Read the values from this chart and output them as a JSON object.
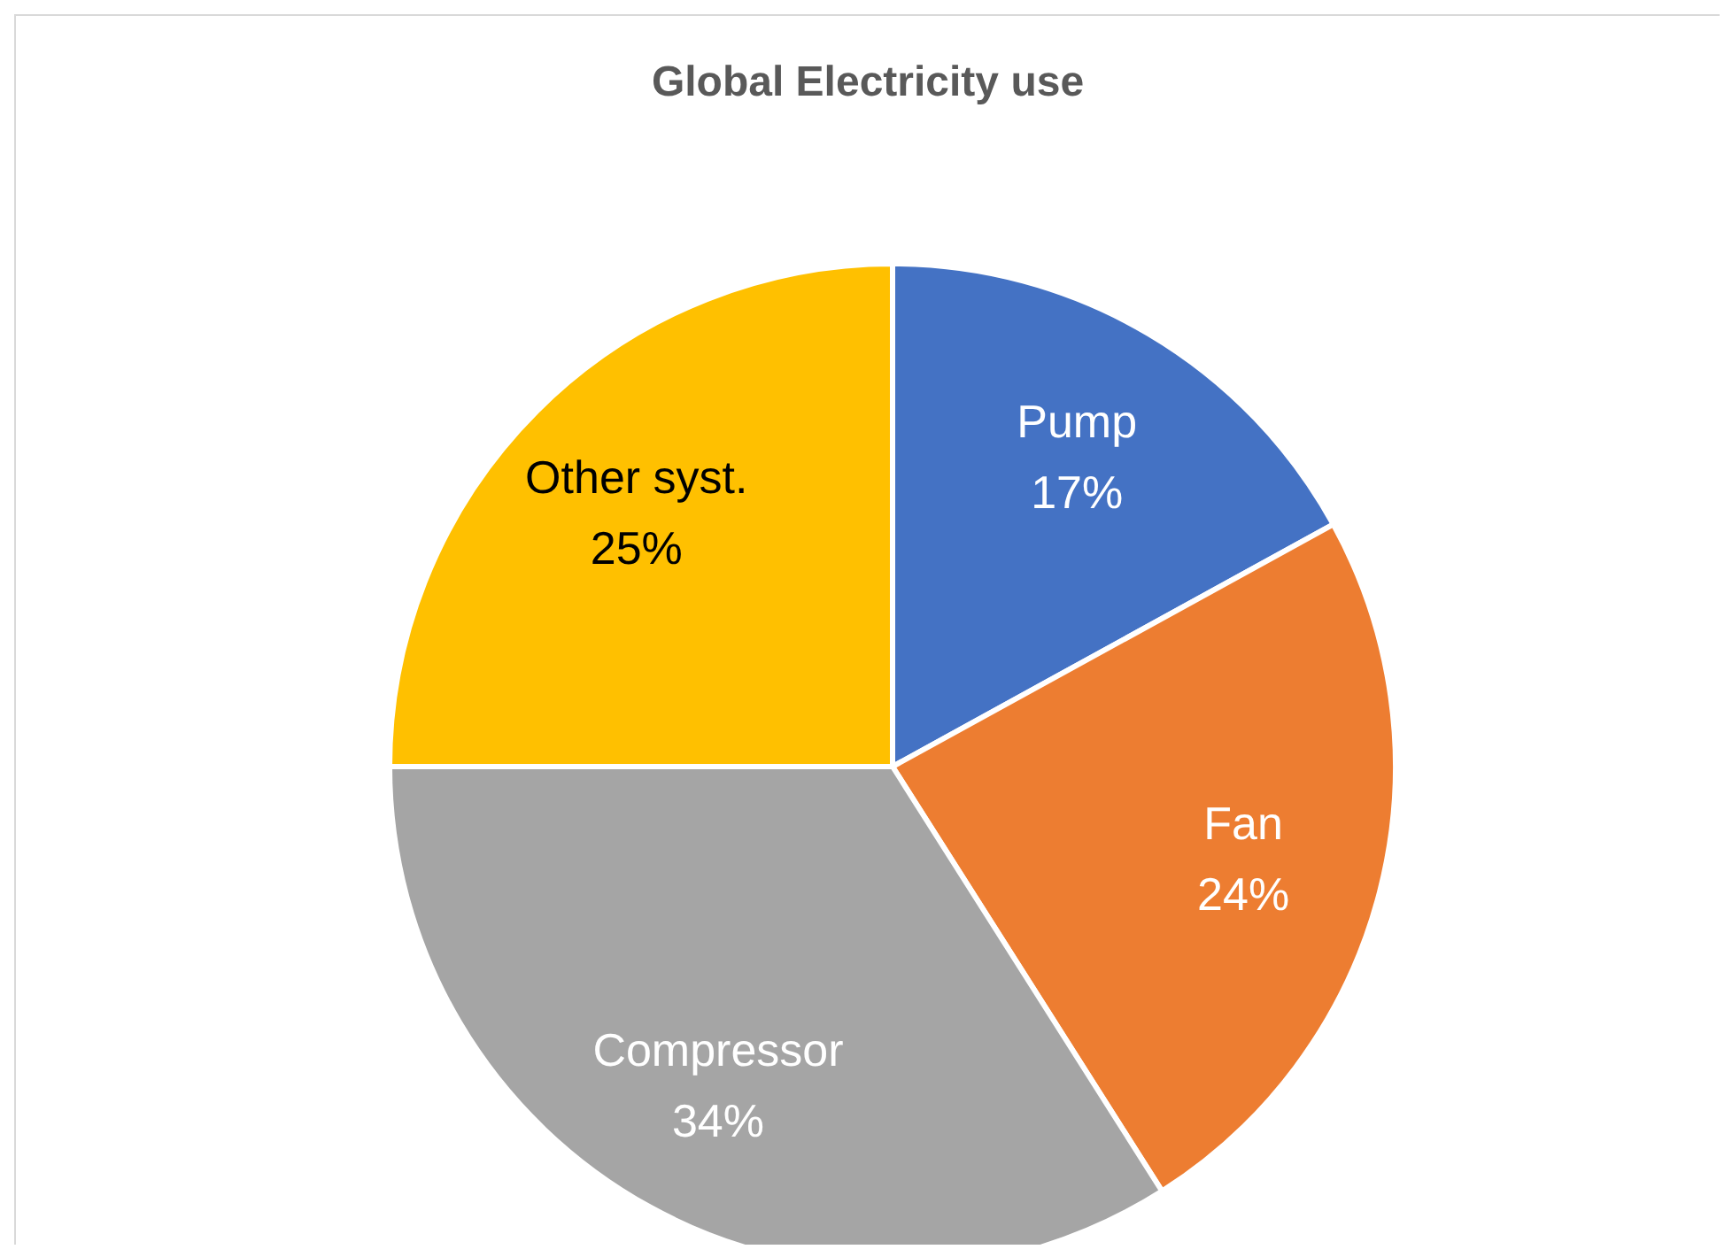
{
  "chart_data": {
    "type": "pie",
    "title": "Global Electricity use",
    "categories": [
      "Pump",
      "Fan",
      "Compressor",
      "Other syst."
    ],
    "values": [
      17,
      24,
      34,
      25
    ],
    "colors": [
      "#4472c4",
      "#ed7d31",
      "#a5a5a5",
      "#ffc000"
    ],
    "value_labels": [
      "17%",
      "24%",
      "34%",
      "25%"
    ],
    "legend": false
  }
}
